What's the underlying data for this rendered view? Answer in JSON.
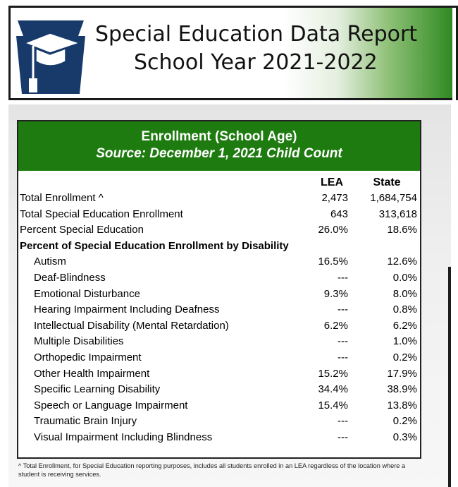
{
  "header": {
    "title_line1": "Special Education Data Report",
    "title_line2": "School Year 2021-2022",
    "logo_icon": "keystone-graduation-cap-icon",
    "colors": {
      "accent_green": "#1e7b0f",
      "border": "#1a1a1a"
    }
  },
  "enrollment": {
    "title": "Enrollment (School Age)",
    "source": "Source: December 1, 2021 Child Count",
    "columns": {
      "lea": "LEA",
      "state": "State"
    },
    "rows": [
      {
        "label": "Total Enrollment ^",
        "lea": "2,473",
        "state": "1,684,754",
        "kind": "top"
      },
      {
        "label": "Total Special Education Enrollment",
        "lea": "643",
        "state": "313,618",
        "kind": "top"
      },
      {
        "label": "Percent Special Education",
        "lea": "26.0%",
        "state": "18.6%",
        "kind": "top"
      },
      {
        "label": "Percent of Special Education Enrollment by Disability",
        "lea": "",
        "state": "",
        "kind": "group"
      },
      {
        "label": "Autism",
        "lea": "16.5%",
        "state": "12.6%",
        "kind": "sub"
      },
      {
        "label": "Deaf-Blindness",
        "lea": "---",
        "state": "0.0%",
        "kind": "sub"
      },
      {
        "label": "Emotional Disturbance",
        "lea": "9.3%",
        "state": "8.0%",
        "kind": "sub"
      },
      {
        "label": "Hearing Impairment Including Deafness",
        "lea": "---",
        "state": "0.8%",
        "kind": "sub"
      },
      {
        "label": "Intellectual Disability (Mental Retardation)",
        "lea": "6.2%",
        "state": "6.2%",
        "kind": "sub"
      },
      {
        "label": "Multiple Disabilities",
        "lea": "---",
        "state": "1.0%",
        "kind": "sub"
      },
      {
        "label": "Orthopedic Impairment",
        "lea": "---",
        "state": "0.2%",
        "kind": "sub"
      },
      {
        "label": "Other Health Impairment",
        "lea": "15.2%",
        "state": "17.9%",
        "kind": "sub"
      },
      {
        "label": "Specific Learning Disability",
        "lea": "34.4%",
        "state": "38.9%",
        "kind": "sub"
      },
      {
        "label": "Speech or Language Impairment",
        "lea": "15.4%",
        "state": "13.8%",
        "kind": "sub"
      },
      {
        "label": "Traumatic Brain Injury",
        "lea": "---",
        "state": "0.2%",
        "kind": "sub"
      },
      {
        "label": "Visual Impairment Including Blindness",
        "lea": "---",
        "state": "0.3%",
        "kind": "sub"
      }
    ],
    "footnote": "^ Total Enrollment, for Special Education reporting purposes, includes all students enrolled in an LEA regardless of the location where a student is receiving services."
  }
}
